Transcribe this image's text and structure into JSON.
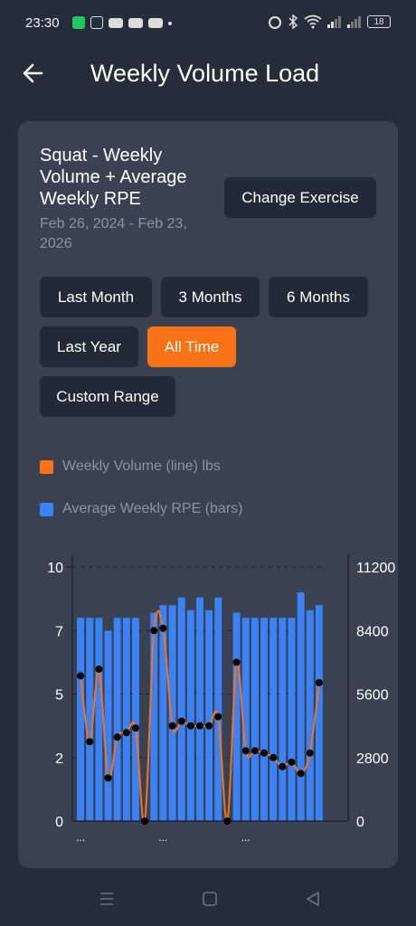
{
  "status_bar": {
    "time": "23:30",
    "battery_level": "18",
    "icons": [
      "notification-app-icon",
      "instagram-icon",
      "youtube-icon",
      "youtube-icon",
      "youtube-icon",
      "alarm-icon",
      "bluetooth-icon",
      "wifi-icon",
      "signal-icon",
      "signal-icon",
      "battery-icon"
    ]
  },
  "header": {
    "title": "Weekly Volume Load",
    "back_icon": "arrow-left-icon"
  },
  "card": {
    "title": "Squat - Weekly Volume + Average Weekly RPE",
    "date_range": "Feb 26, 2024 - Feb 23, 2026",
    "change_exercise_label": "Change Exercise",
    "range_buttons": [
      {
        "label": "Last Month",
        "active": false
      },
      {
        "label": "3 Months",
        "active": false
      },
      {
        "label": "6 Months",
        "active": false
      },
      {
        "label": "Last Year",
        "active": false
      },
      {
        "label": "All Time",
        "active": true
      },
      {
        "label": "Custom Range",
        "active": false
      }
    ],
    "legend": [
      {
        "label": "Weekly Volume (line) lbs",
        "color": "#f97316"
      },
      {
        "label": "Average Weekly RPE (bars)",
        "color": "#3b82f6"
      }
    ]
  },
  "colors": {
    "background": "#262d3a",
    "card": "#3a4252",
    "accent": "#f97316",
    "bar": "#3b82f6",
    "button": "#232a37"
  },
  "chart_data": {
    "type": "bar",
    "y_left": {
      "ticks": [
        "10",
        "7",
        "5",
        "2",
        "0"
      ],
      "range": [
        0,
        10
      ]
    },
    "y_right": {
      "ticks": [
        "11200",
        "8400",
        "5600",
        "2800",
        "0"
      ],
      "range": [
        0,
        11200
      ]
    },
    "x_tick_labels": [
      "...",
      "...",
      "..."
    ],
    "grid": "dashed horizontal",
    "series": [
      {
        "name": "Average Weekly RPE (bars)",
        "type": "bar",
        "axis": "left",
        "values": [
          8,
          8,
          8,
          7.5,
          8,
          8,
          8,
          0,
          8.2,
          8.5,
          8.5,
          8.8,
          8.3,
          8.8,
          8.3,
          8.8,
          0,
          8.2,
          8,
          8,
          8,
          8,
          8,
          8,
          9,
          8.3,
          8.5
        ]
      },
      {
        "name": "Weekly Volume (line) lbs",
        "type": "line",
        "axis": "right",
        "values": [
          6400,
          3500,
          6700,
          1900,
          3700,
          3900,
          4100,
          0,
          8400,
          8500,
          4200,
          4400,
          4200,
          4200,
          4200,
          4600,
          0,
          7000,
          3100,
          3100,
          3000,
          2800,
          2400,
          2600,
          2100,
          3000,
          6100
        ]
      }
    ]
  }
}
